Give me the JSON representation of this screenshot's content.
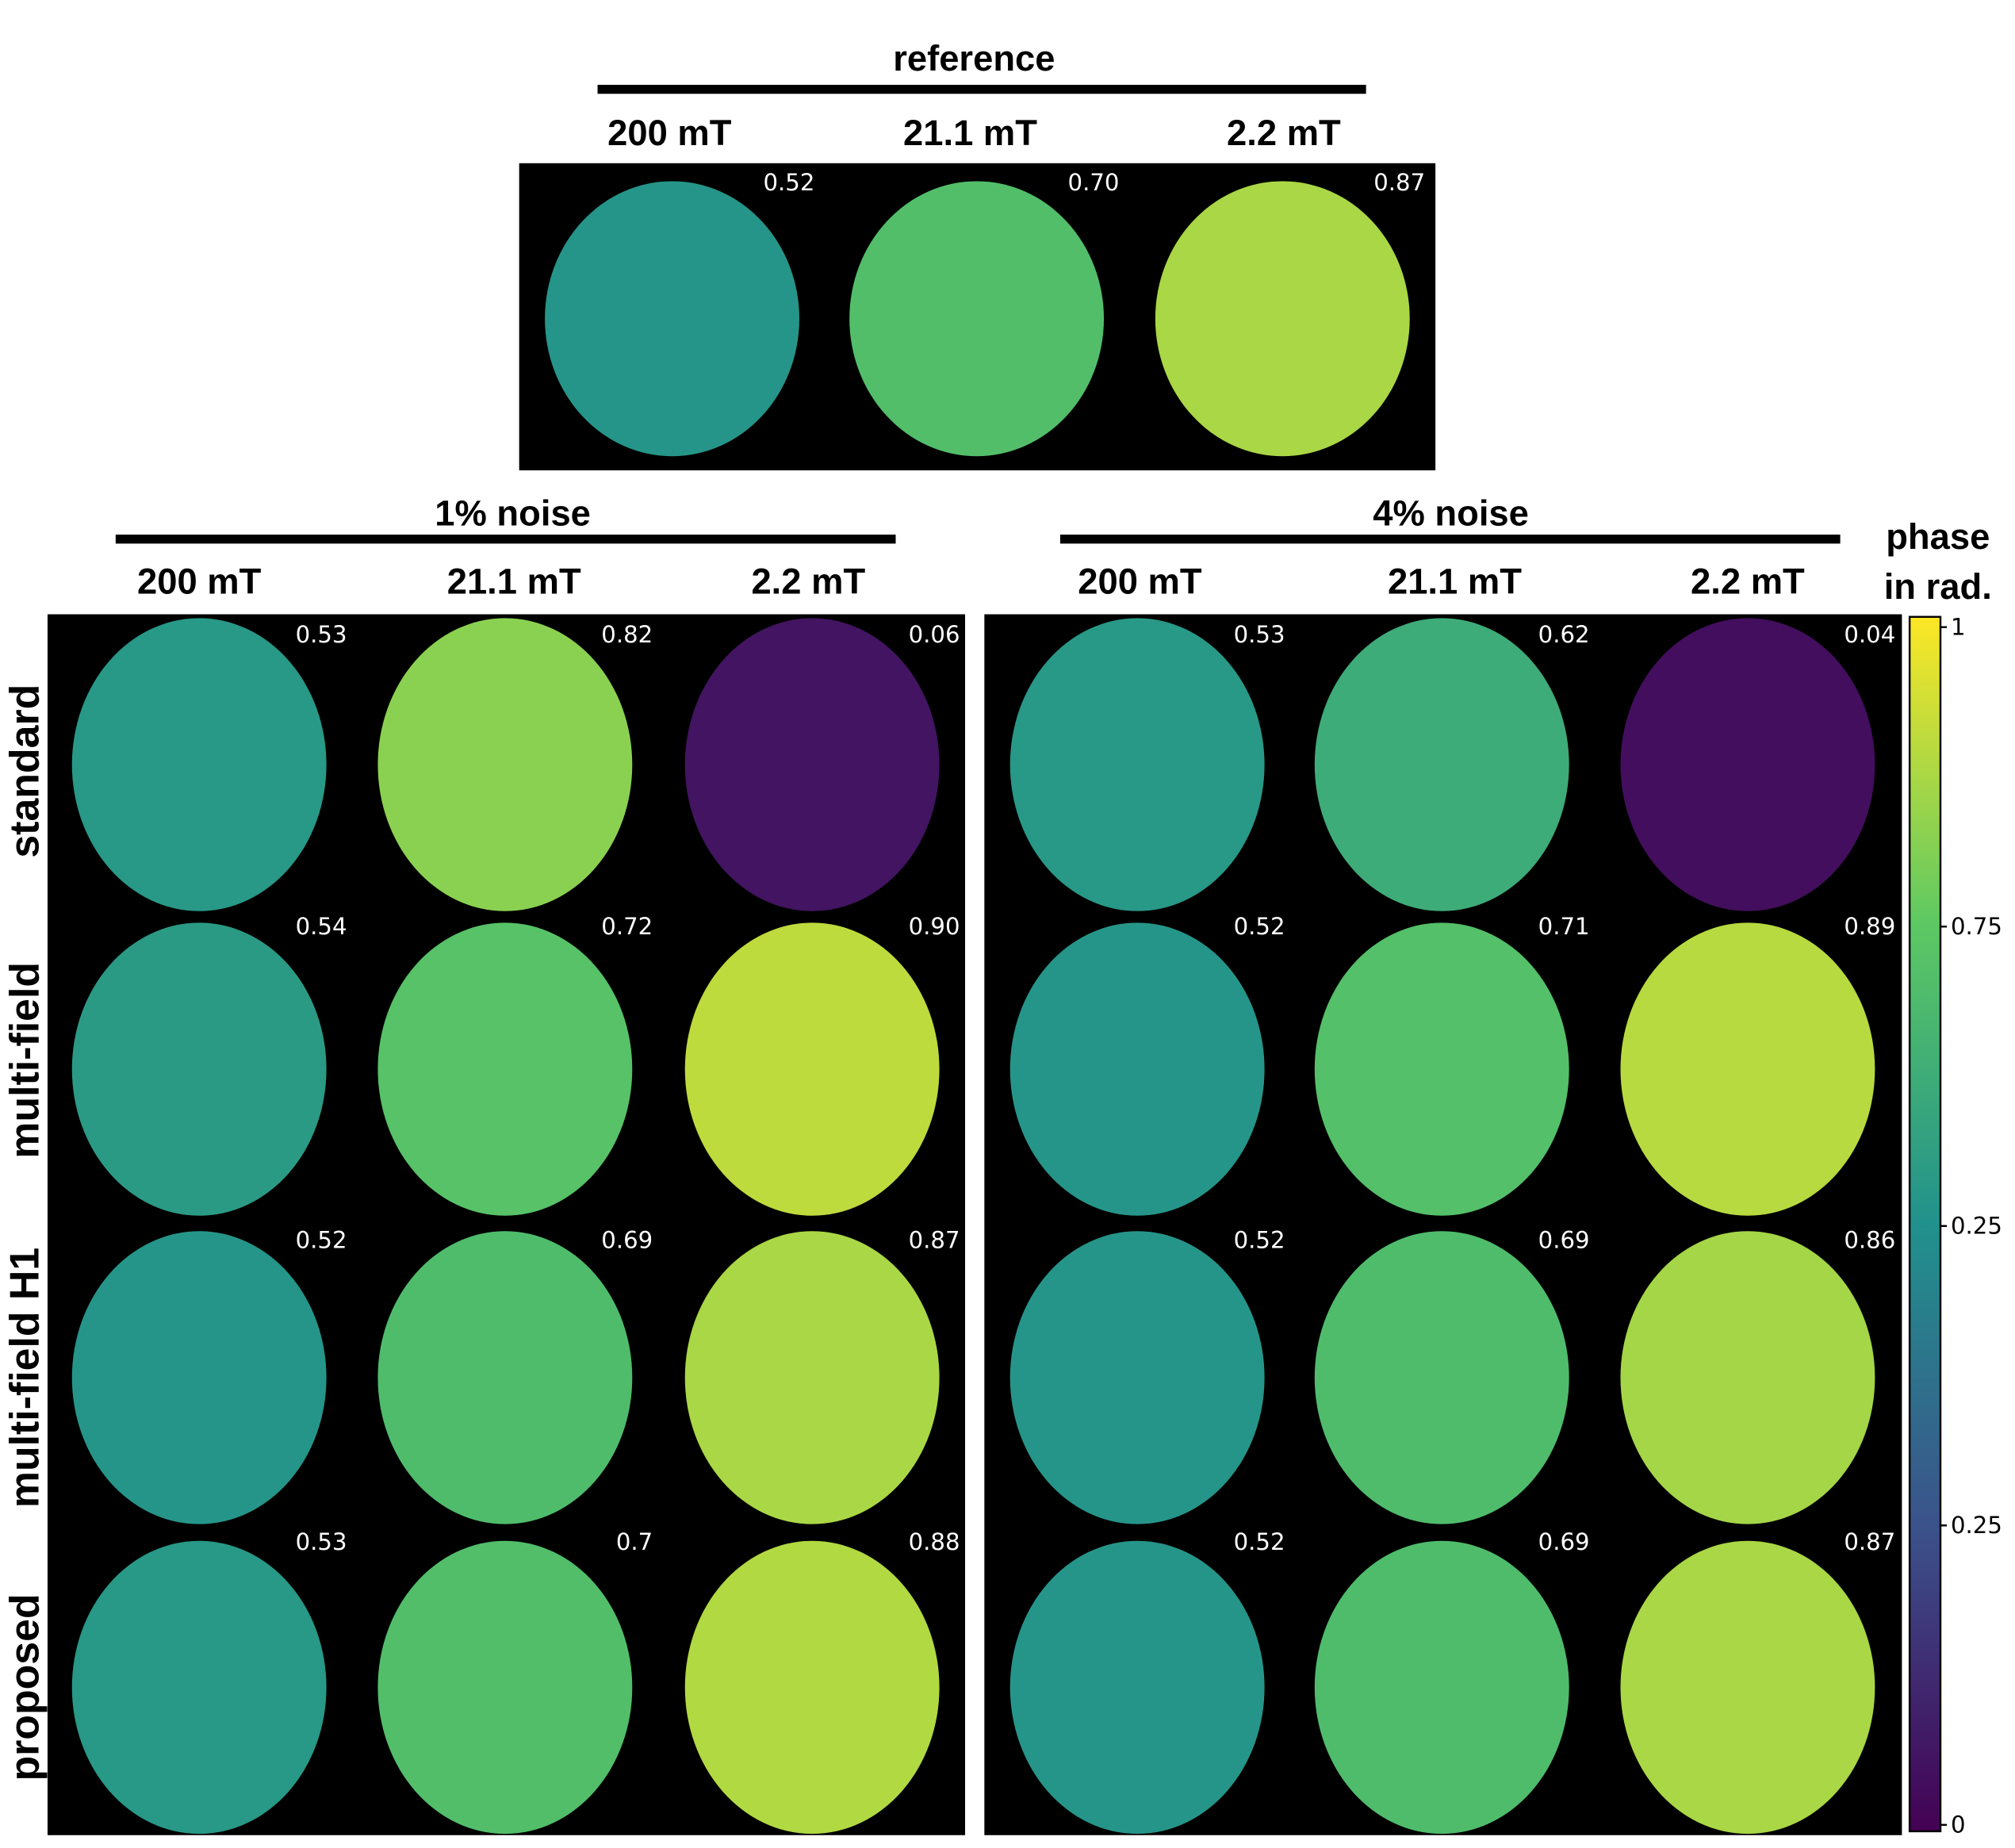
{
  "reference": {
    "title": "reference",
    "fields": [
      "200 mT",
      "21.1 mT",
      "2.2 mT"
    ],
    "values": [
      "0.52",
      "0.70",
      "0.87"
    ]
  },
  "panels": [
    {
      "title": "1% noise",
      "fields": [
        "200 mT",
        "21.1 mT",
        "2.2 mT"
      ],
      "rows": [
        [
          "0.53",
          "0.82",
          "0.06"
        ],
        [
          "0.54",
          "0.72",
          "0.90"
        ],
        [
          "0.52",
          "0.69",
          "0.87"
        ],
        [
          "0.53",
          "0.7",
          "0.88"
        ]
      ]
    },
    {
      "title": "4% noise",
      "fields": [
        "200 mT",
        "21.1 mT",
        "2.2 mT"
      ],
      "rows": [
        [
          "0.53",
          "0.62",
          "0.04"
        ],
        [
          "0.52",
          "0.71",
          "0.89"
        ],
        [
          "0.52",
          "0.69",
          "0.86"
        ],
        [
          "0.52",
          "0.69",
          "0.87"
        ]
      ]
    }
  ],
  "row_labels": [
    "standard",
    "multi-field",
    "multi-field H1",
    "proposed"
  ],
  "colorbar": {
    "label": [
      "phase",
      "in rad."
    ],
    "ticks": [
      "1",
      "0.75",
      "0.25",
      "0.25",
      "0"
    ]
  }
}
